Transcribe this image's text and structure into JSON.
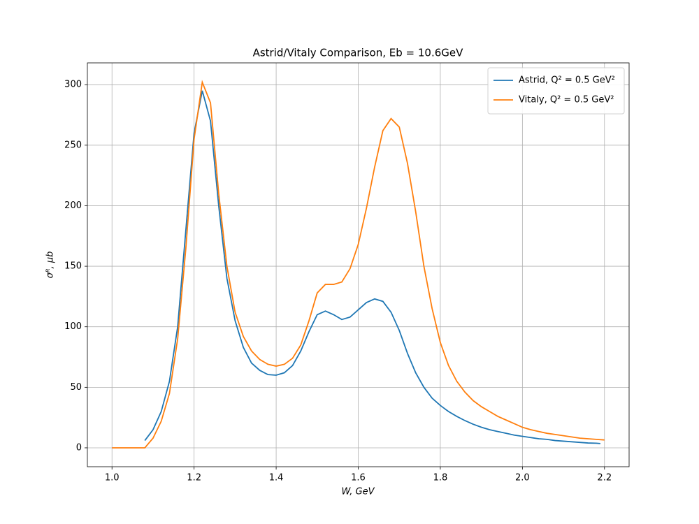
{
  "chart_data": {
    "type": "line",
    "title": "Astrid/Vitaly Comparison, Eb = 10.6GeV",
    "xlabel": "W, GeV",
    "ylabel": "σᴿ, μb",
    "xlim": [
      0.94,
      2.26
    ],
    "ylim": [
      -15.6,
      318
    ],
    "xticks": [
      {
        "value": 1.0,
        "label": "1.0"
      },
      1.2,
      1.4,
      1.6,
      1.8,
      {
        "value": 2.0,
        "label": "2.0"
      },
      2.2
    ],
    "yticks": [
      0,
      50,
      100,
      150,
      200,
      250,
      300
    ],
    "grid": true,
    "legend": "upper right",
    "series": [
      {
        "name": "Astrid, Q² = 0.5 GeV²",
        "color": "#1f77b4",
        "x": [
          1.08,
          1.1,
          1.12,
          1.14,
          1.16,
          1.18,
          1.2,
          1.22,
          1.24,
          1.26,
          1.28,
          1.3,
          1.32,
          1.34,
          1.36,
          1.38,
          1.4,
          1.42,
          1.44,
          1.46,
          1.48,
          1.5,
          1.52,
          1.54,
          1.56,
          1.58,
          1.6,
          1.62,
          1.64,
          1.66,
          1.68,
          1.7,
          1.72,
          1.74,
          1.76,
          1.78,
          1.8,
          1.82,
          1.84,
          1.86,
          1.88,
          1.9,
          1.92,
          1.94,
          1.96,
          1.98,
          2.0,
          2.02,
          2.04,
          2.06,
          2.08,
          2.1,
          2.12,
          2.14,
          2.16,
          2.18,
          2.19
        ],
        "values": [
          6,
          15,
          30,
          55,
          100,
          180,
          260,
          295,
          270,
          200,
          140,
          105,
          83,
          70,
          64,
          60.5,
          60,
          62,
          68,
          80,
          96,
          110,
          113,
          110,
          106,
          108,
          114,
          120,
          123,
          121,
          112,
          97,
          78,
          62,
          50,
          41,
          35,
          30,
          26,
          22.5,
          19.5,
          17,
          15,
          13.5,
          12,
          10.5,
          9.5,
          8.5,
          7.5,
          7,
          6,
          5.5,
          5,
          4.5,
          4,
          3.8,
          3.5
        ]
      },
      {
        "name": "Vitaly, Q² = 0.5 GeV²",
        "color": "#ff7f0e",
        "x": [
          1.0,
          1.02,
          1.04,
          1.06,
          1.08,
          1.1,
          1.12,
          1.14,
          1.16,
          1.18,
          1.2,
          1.22,
          1.24,
          1.26,
          1.28,
          1.3,
          1.32,
          1.34,
          1.36,
          1.38,
          1.4,
          1.42,
          1.44,
          1.46,
          1.48,
          1.5,
          1.52,
          1.54,
          1.56,
          1.58,
          1.6,
          1.62,
          1.64,
          1.66,
          1.68,
          1.7,
          1.72,
          1.74,
          1.76,
          1.78,
          1.8,
          1.82,
          1.84,
          1.86,
          1.88,
          1.9,
          1.92,
          1.94,
          1.96,
          1.98,
          2.0,
          2.02,
          2.04,
          2.06,
          2.08,
          2.1,
          2.12,
          2.14,
          2.16,
          2.18,
          2.2
        ],
        "values": [
          0,
          0,
          0,
          0,
          0,
          8,
          22,
          45,
          90,
          165,
          255,
          302,
          285,
          210,
          150,
          112,
          92,
          80,
          73,
          69,
          67.5,
          69,
          74,
          85,
          105,
          128,
          135,
          135,
          137,
          148,
          168,
          198,
          232,
          262,
          272,
          265,
          235,
          195,
          150,
          115,
          87,
          68,
          55,
          46,
          39,
          34,
          30,
          26,
          23,
          20,
          17,
          15,
          13.5,
          12,
          11,
          10,
          9,
          8,
          7.5,
          7,
          6.5
        ]
      }
    ]
  }
}
